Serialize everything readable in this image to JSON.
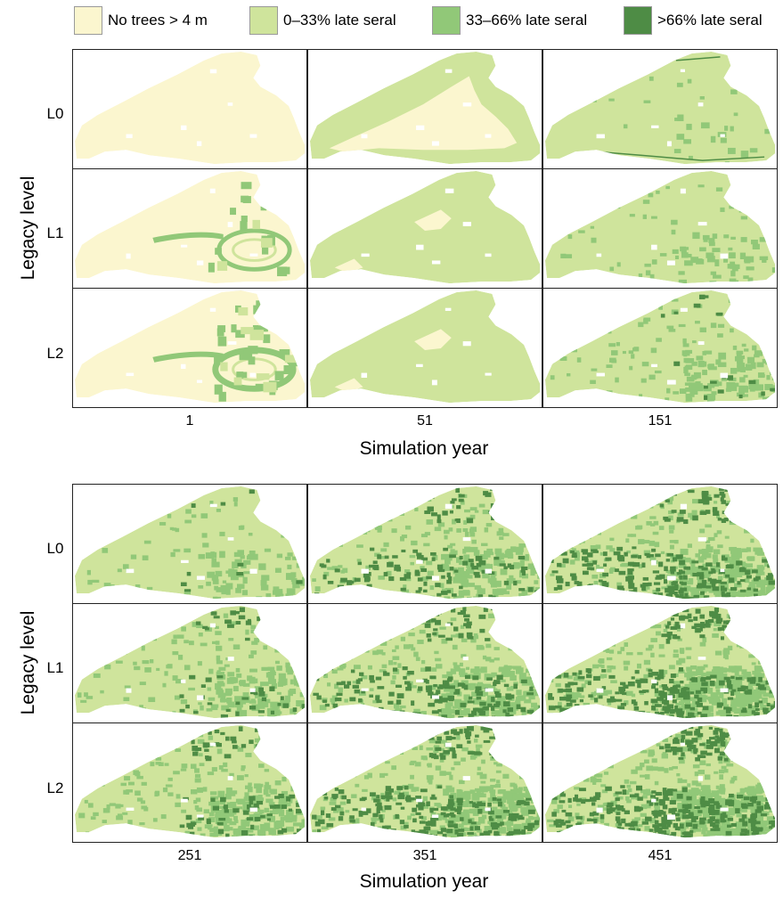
{
  "legend": {
    "items": [
      {
        "label": "No trees > 4 m",
        "color": "#fbf6cf"
      },
      {
        "label": "0–33% late seral",
        "color": "#cfe49c"
      },
      {
        "label": "33–66% late seral",
        "color": "#91c878"
      },
      {
        "label": ">66% late seral",
        "color": "#4e8c45"
      }
    ]
  },
  "panels": [
    {
      "x_title": "Simulation year",
      "y_title": "Legacy level",
      "years": [
        "1",
        "51",
        "151"
      ],
      "levels": [
        "L0",
        "L1",
        "L2"
      ]
    },
    {
      "x_title": "Simulation year",
      "y_title": "Legacy level",
      "years": [
        "251",
        "351",
        "451"
      ],
      "levels": [
        "L0",
        "L1",
        "L2"
      ]
    }
  ]
}
